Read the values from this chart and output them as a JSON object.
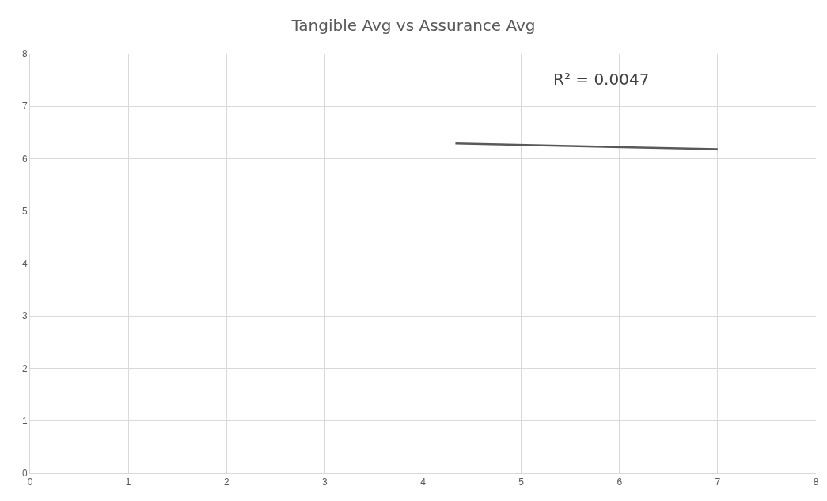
{
  "chart_data": {
    "type": "line",
    "title": "Tangible Avg vs Assurance Avg",
    "annotations": [
      "R² = 0.0047"
    ],
    "series": [
      {
        "color": "#595959",
        "x": [
          4.33,
          7
        ],
        "values": [
          6.29,
          6.18
        ]
      }
    ],
    "xlim": [
      0,
      8
    ],
    "xticks": [
      0,
      1,
      2,
      3,
      4,
      5,
      6,
      7,
      8
    ],
    "ylim": [
      0,
      8
    ],
    "yticks": [
      0,
      1,
      2,
      3,
      4,
      5,
      6,
      7,
      8
    ],
    "grid": true,
    "marker": "none",
    "line_style": "solid"
  }
}
